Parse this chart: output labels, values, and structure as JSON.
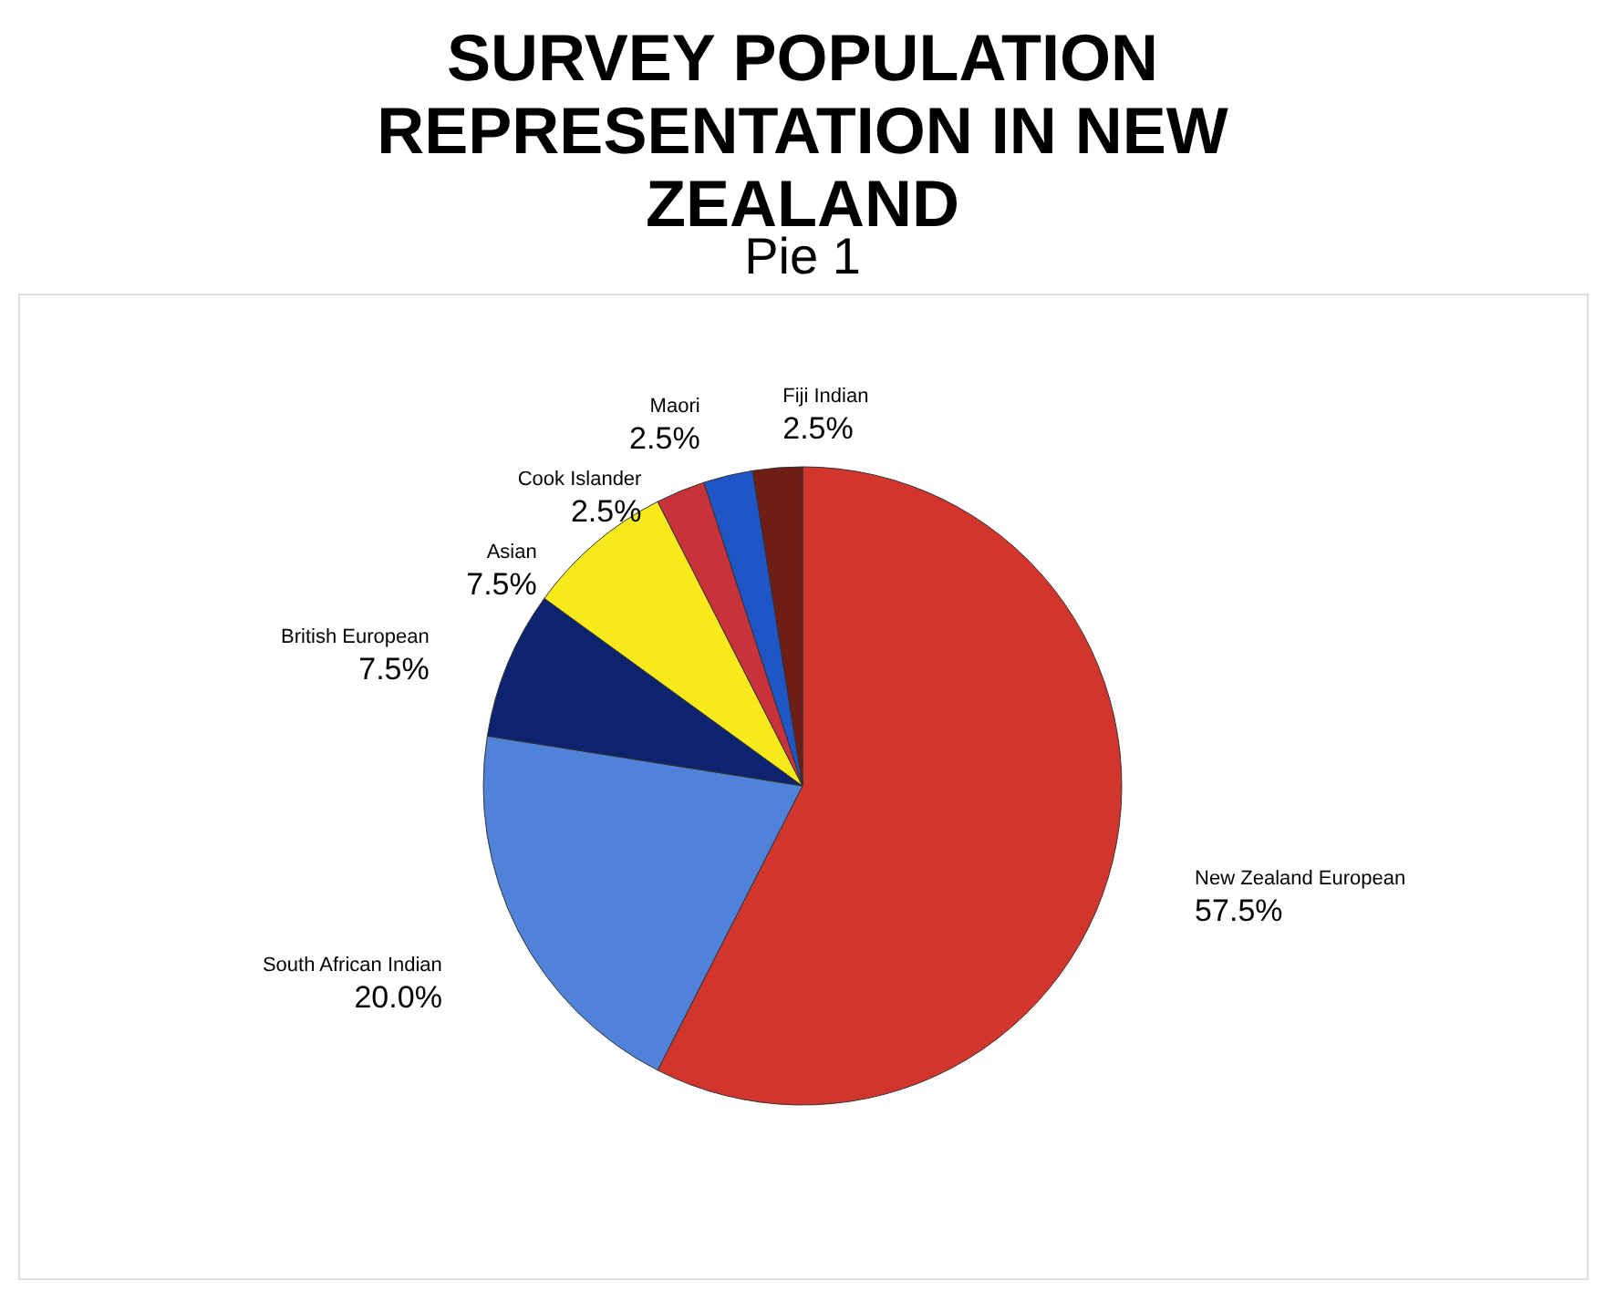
{
  "chart_data": {
    "type": "pie",
    "title": "SURVEY POPULATION REPRESENTATION IN NEW ZEALAND",
    "subtitle": "Pie 1",
    "categories": [
      "New Zealand European",
      "South African Indian",
      "British European",
      "Asian",
      "Cook Islander",
      "Maori",
      "Fiji Indian"
    ],
    "values": [
      57.5,
      20.0,
      7.5,
      7.5,
      2.5,
      2.5,
      2.5
    ],
    "value_labels": [
      "57.5%",
      "20.0%",
      "7.5%",
      "7.5%",
      "2.5%",
      "2.5%",
      "2.5%"
    ],
    "colors": [
      "#d2352c",
      "#4f82d8",
      "#0d2370",
      "#f7ea1a",
      "#c8323a",
      "#1f55c4",
      "#6e1e14"
    ],
    "legend": false
  }
}
